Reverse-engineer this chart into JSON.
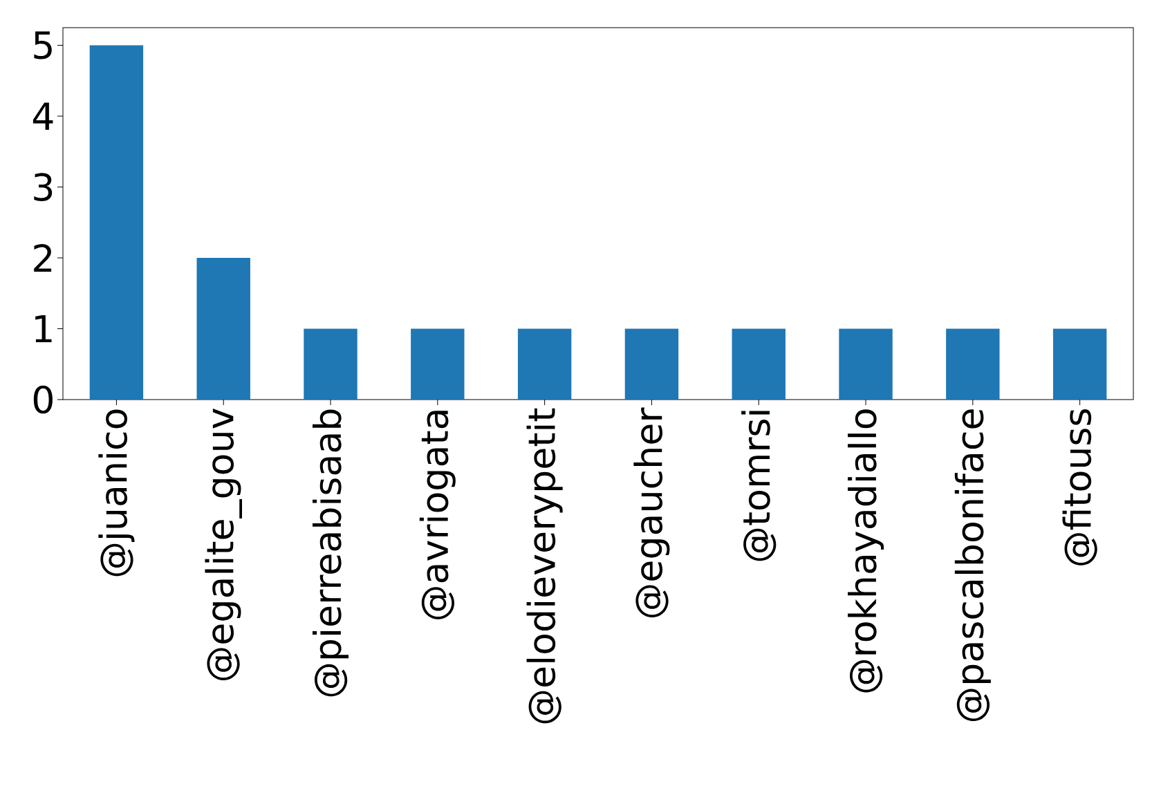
{
  "chart_data": {
    "type": "bar",
    "categories": [
      "@juanico",
      "@egalite_gouv",
      "@pierreabisaab",
      "@avriogata",
      "@elodieverypetit",
      "@egaucher",
      "@tomrsi",
      "@rokhayadiallo",
      "@pascalboniface",
      "@fitouss"
    ],
    "values": [
      5,
      2,
      1,
      1,
      1,
      1,
      1,
      1,
      1,
      1
    ],
    "color": "#1f77b4",
    "ylim": [
      0,
      5.25
    ],
    "yticks": [
      0,
      1,
      2,
      3,
      4,
      5
    ]
  }
}
